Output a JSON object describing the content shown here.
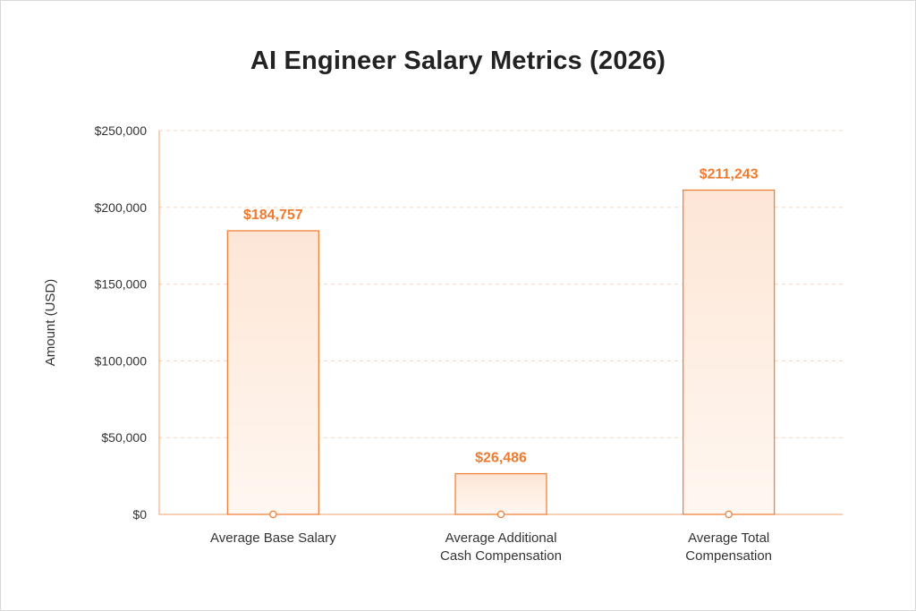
{
  "chart_data": {
    "type": "bar",
    "title": "AI Engineer Salary Metrics (2026)",
    "ylabel": "Amount (USD)",
    "xlabel": "",
    "ylim": [
      0,
      250000
    ],
    "y_ticks": [
      0,
      50000,
      100000,
      150000,
      200000,
      250000
    ],
    "y_tick_labels": [
      "$0",
      "$50,000",
      "$100,000",
      "$150,000",
      "$200,000",
      "$250,000"
    ],
    "grid": true,
    "categories": [
      [
        "Average Base Salary"
      ],
      [
        "Average Additional",
        "Cash Compensation"
      ],
      [
        "Average Total",
        "Compensation"
      ]
    ],
    "values": [
      184757,
      26486,
      211243
    ],
    "data_labels": [
      "$184,757",
      "$26,486",
      "$211,243"
    ],
    "colors": {
      "bar_stroke": "#f07a2e",
      "bar_fill_top": "#fde6d6",
      "bar_fill_bottom": "#fff7f1",
      "grid": "#f8d5bd",
      "axis": "#f3a06a",
      "label": "#f07a2e"
    }
  }
}
